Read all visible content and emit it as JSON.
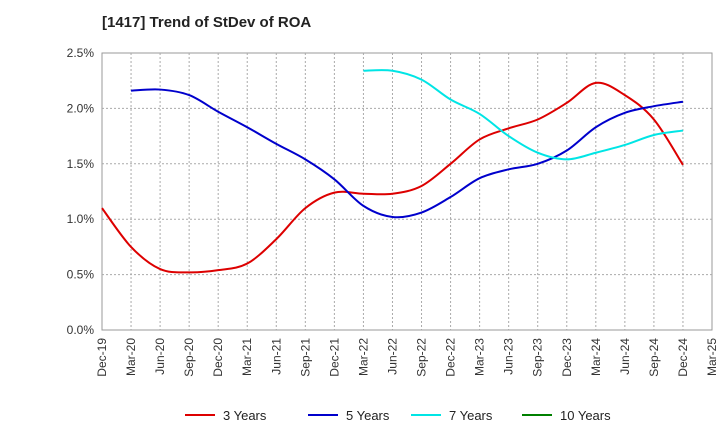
{
  "title": "[1417]  Trend of StDev of ROA",
  "chart_data": {
    "type": "line",
    "title": "[1417]  Trend of StDev of ROA",
    "xlabel": "",
    "ylabel": "",
    "x": [
      "Dec-19",
      "Mar-20",
      "Jun-20",
      "Sep-20",
      "Dec-20",
      "Mar-21",
      "Jun-21",
      "Sep-21",
      "Dec-21",
      "Mar-22",
      "Jun-22",
      "Sep-22",
      "Dec-22",
      "Mar-23",
      "Jun-23",
      "Sep-23",
      "Dec-23",
      "Mar-24",
      "Jun-24",
      "Sep-24",
      "Dec-24",
      "Mar-25"
    ],
    "ylim": [
      0,
      2.5
    ],
    "yticks": [
      0,
      0.5,
      1.0,
      1.5,
      2.0,
      2.5
    ],
    "ytick_labels": [
      "0.0%",
      "0.5%",
      "1.0%",
      "1.5%",
      "2.0%",
      "2.5%"
    ],
    "grid": "dashed",
    "legend_position": "bottom",
    "series": [
      {
        "name": "3 Years",
        "color": "#dd0000",
        "values": [
          1.1,
          0.75,
          0.55,
          0.52,
          0.54,
          0.6,
          0.82,
          1.1,
          1.24,
          1.23,
          1.23,
          1.3,
          1.5,
          1.72,
          1.82,
          1.9,
          2.05,
          2.23,
          2.12,
          1.9,
          1.49,
          null
        ]
      },
      {
        "name": "5 Years",
        "color": "#0000cc",
        "values": [
          null,
          2.16,
          2.17,
          2.12,
          1.97,
          1.83,
          1.68,
          1.54,
          1.36,
          1.12,
          1.02,
          1.06,
          1.2,
          1.37,
          1.45,
          1.5,
          1.62,
          1.83,
          1.96,
          2.02,
          2.06,
          null
        ]
      },
      {
        "name": "7 Years",
        "color": "#00e5e5",
        "values": [
          null,
          null,
          null,
          null,
          null,
          null,
          null,
          null,
          null,
          2.34,
          2.34,
          2.26,
          2.08,
          1.95,
          1.75,
          1.6,
          1.54,
          1.6,
          1.67,
          1.76,
          1.8,
          null
        ]
      },
      {
        "name": "10 Years",
        "color": "#008000",
        "values": [
          null,
          null,
          null,
          null,
          null,
          null,
          null,
          null,
          null,
          null,
          null,
          null,
          null,
          null,
          null,
          null,
          null,
          null,
          null,
          null,
          null,
          null
        ]
      }
    ]
  }
}
